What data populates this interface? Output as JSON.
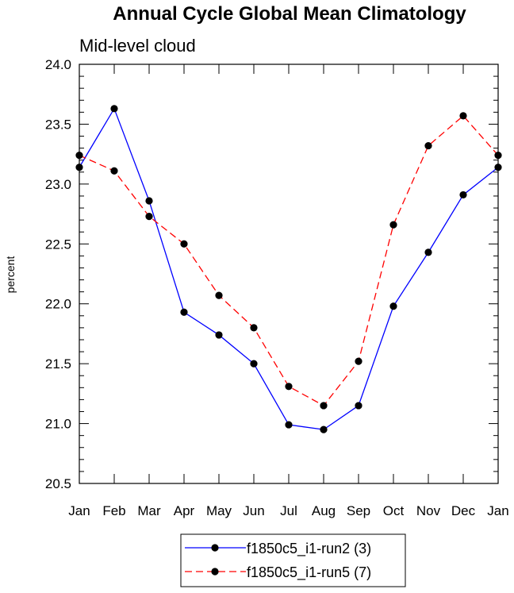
{
  "chart_data": {
    "type": "line",
    "title": "Annual Cycle Global Mean Climatology",
    "subtitle": "Mid-level cloud",
    "xlabel": "",
    "ylabel": "percent",
    "categories": [
      "Jan",
      "Feb",
      "Mar",
      "Apr",
      "May",
      "Jun",
      "Jul",
      "Aug",
      "Sep",
      "Oct",
      "Nov",
      "Dec",
      "Jan"
    ],
    "ylim": [
      20.5,
      24.0
    ],
    "yticks": [
      "20.5",
      "21.0",
      "21.5",
      "22.0",
      "22.5",
      "23.0",
      "23.5",
      "24.0"
    ],
    "series": [
      {
        "name": "f1850c5_i1-run2 (3)",
        "color": "#0000ff",
        "dash": "solid",
        "values": [
          23.14,
          23.63,
          22.86,
          21.93,
          21.74,
          21.5,
          20.99,
          20.95,
          21.15,
          21.98,
          22.43,
          22.91,
          23.14
        ]
      },
      {
        "name": "f1850c5_i1-run5 (7)",
        "color": "#ff0000",
        "dash": "dashed",
        "values": [
          23.24,
          23.11,
          22.73,
          22.5,
          22.07,
          21.8,
          21.31,
          21.15,
          21.52,
          22.66,
          23.32,
          23.57,
          23.24
        ]
      }
    ],
    "legend_position": "bottom-center",
    "grid": false
  }
}
